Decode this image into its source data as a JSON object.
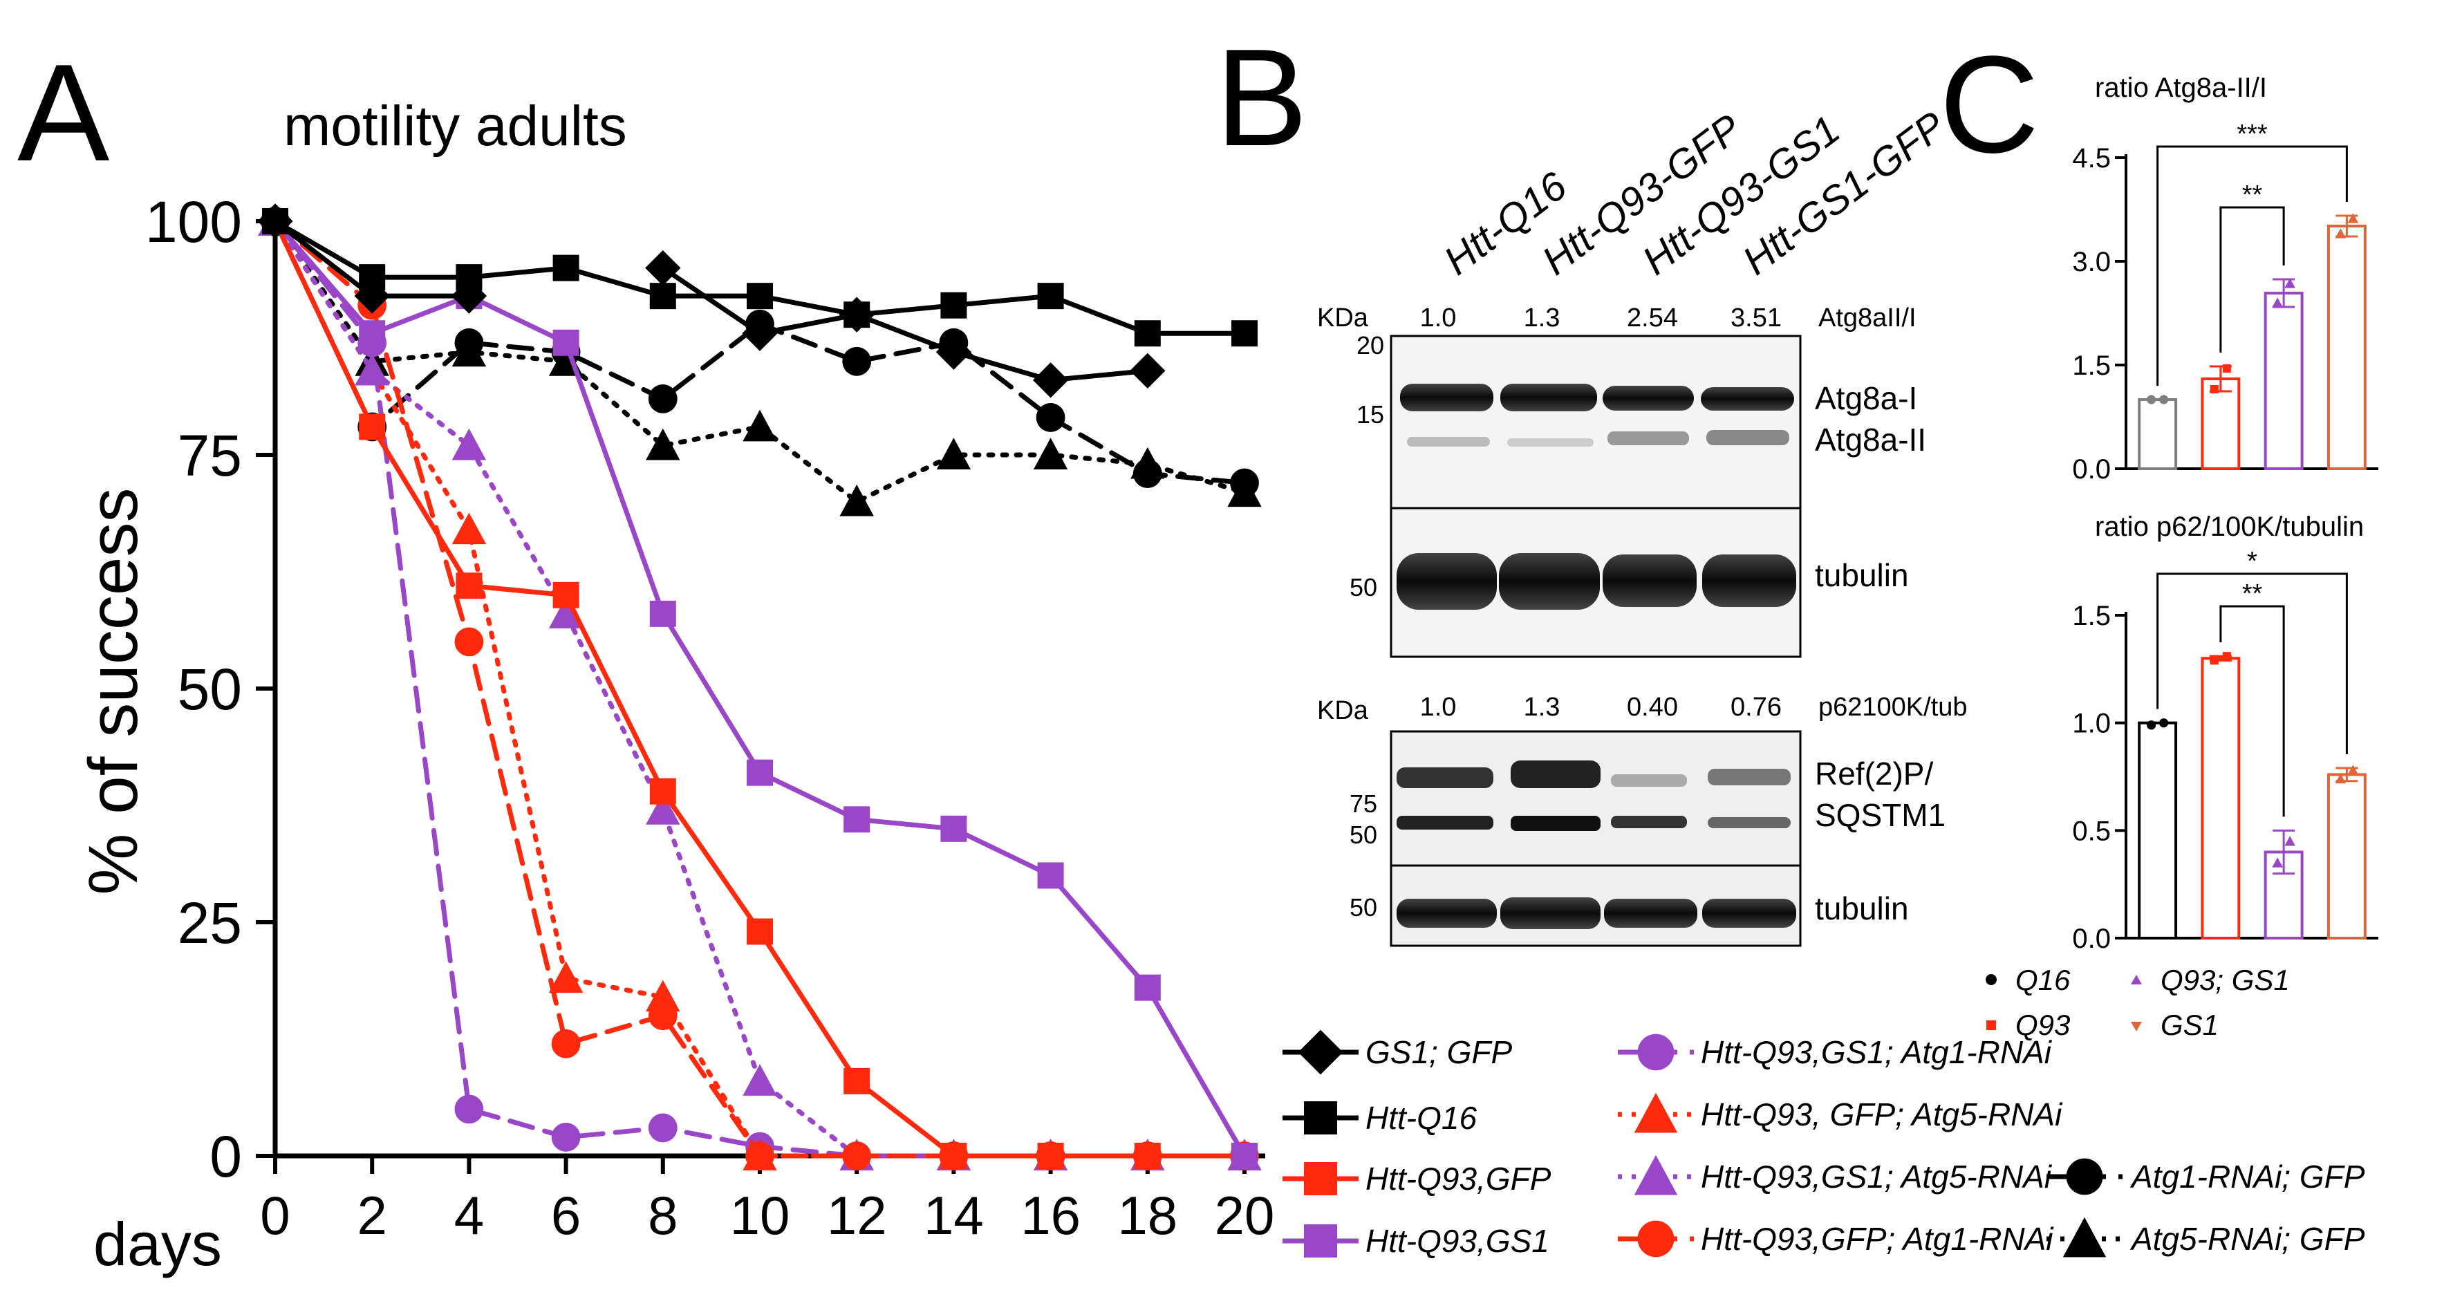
{
  "panels": {
    "a": {
      "letter": "A",
      "title": "motility adults"
    },
    "b": {
      "letter": "B"
    },
    "c": {
      "letter": "C"
    }
  },
  "colors": {
    "black": "#000000",
    "red": "#ff2a0d",
    "purple": "#9a46c8",
    "orange": "#e0663a",
    "gray": "#808080"
  },
  "chart_data": [
    {
      "type": "line",
      "panel": "A",
      "title": "motility adults",
      "xlabel": "days",
      "ylabel": "% of success",
      "x": [
        0,
        2,
        4,
        6,
        8,
        10,
        12,
        14,
        16,
        18,
        20
      ],
      "xticks": [
        "0",
        "2",
        "4",
        "6",
        "8",
        "10",
        "12",
        "14",
        "16",
        "18",
        "20"
      ],
      "yticks": [
        "0",
        "25",
        "50",
        "75",
        "100"
      ],
      "xlim": [
        0,
        20
      ],
      "ylim": [
        0,
        100
      ],
      "series": [
        {
          "name": "GS1; GFP",
          "color": "#000000",
          "marker": "diamond",
          "dash": "solid",
          "values": [
            100,
            92,
            92,
            null,
            95,
            88,
            90,
            86,
            83,
            84,
            null
          ]
        },
        {
          "name": "Htt-Q16",
          "color": "#000000",
          "marker": "square",
          "dash": "solid",
          "values": [
            100,
            94,
            94,
            95,
            92,
            92,
            90,
            91,
            92,
            88,
            88
          ]
        },
        {
          "name": "Htt-Q93,GFP",
          "color": "#ff2a0d",
          "marker": "square",
          "dash": "solid",
          "values": [
            100,
            78,
            61,
            60,
            39,
            24,
            8,
            0,
            0,
            0,
            0
          ]
        },
        {
          "name": "Htt-Q93,GS1",
          "color": "#9a46c8",
          "marker": "square",
          "dash": "solid",
          "values": [
            100,
            88,
            92,
            87,
            58,
            41,
            36,
            35,
            30,
            18,
            0
          ]
        },
        {
          "name": "Htt-Q93,GS1; Atg1-RNAi",
          "color": "#9a46c8",
          "marker": "circle",
          "dash": "dashed",
          "values": [
            100,
            87,
            5,
            2,
            3,
            1,
            0,
            0,
            0,
            0,
            0
          ]
        },
        {
          "name": "Htt-Q93, GFP; Atg5-RNAi",
          "color": "#ff2a0d",
          "marker": "triangle",
          "dash": "dotted",
          "values": [
            100,
            84,
            67,
            19,
            17,
            0,
            0,
            0,
            0,
            0,
            0
          ]
        },
        {
          "name": "Htt-Q93,GS1; Atg5-RNAi",
          "color": "#9a46c8",
          "marker": "triangle",
          "dash": "dotted",
          "values": [
            100,
            84,
            76,
            58,
            37,
            8,
            0,
            0,
            0,
            0,
            0
          ]
        },
        {
          "name": "Htt-Q93,GFP; Atg1-RNAi",
          "color": "#ff2a0d",
          "marker": "circle",
          "dash": "dashed",
          "values": [
            100,
            91,
            55,
            12,
            15,
            0,
            0,
            0,
            0,
            0,
            0
          ]
        },
        {
          "name": "Atg1-RNAi; GFP",
          "color": "#000000",
          "marker": "circle",
          "dash": "dashed",
          "values": [
            100,
            78,
            87,
            86,
            81,
            89,
            85,
            87,
            79,
            73,
            72
          ]
        },
        {
          "name": "Atg5-RNAi; GFP",
          "color": "#000000",
          "marker": "triangle",
          "dash": "dotted",
          "values": [
            100,
            85,
            86,
            85,
            76,
            78,
            70,
            75,
            75,
            74,
            71
          ]
        }
      ]
    },
    {
      "type": "bar",
      "panel": "C-top",
      "title": "ratio Atg8a-II/I",
      "categories": [
        "Q16",
        "Q93",
        "Q93; GS1",
        "GS1"
      ],
      "values": [
        1.0,
        1.3,
        2.54,
        3.51
      ],
      "errors": [
        0.0,
        0.18,
        0.2,
        0.15
      ],
      "points": [
        [
          1.0,
          1.0
        ],
        [
          1.15,
          1.45
        ],
        [
          2.4,
          2.68
        ],
        [
          3.4,
          3.62
        ]
      ],
      "colors": [
        "#808080",
        "#ff2a0d",
        "#9a46c8",
        "#e0663a"
      ],
      "ylim": [
        0,
        4.5
      ],
      "yticks": [
        "0.0",
        "1.5",
        "3.0",
        "4.5"
      ],
      "significance": [
        {
          "from": 1,
          "to": 2,
          "label": "**"
        },
        {
          "from": 0,
          "to": 3,
          "label": "***"
        }
      ]
    },
    {
      "type": "bar",
      "panel": "C-bottom",
      "title": "ratio p62/100K/tubulin",
      "categories": [
        "Q16",
        "Q93",
        "Q93; GS1",
        "GS1"
      ],
      "values": [
        1.0,
        1.3,
        0.4,
        0.76
      ],
      "errors": [
        0.0,
        0.01,
        0.1,
        0.03
      ],
      "points": [
        [
          0.99,
          1.0
        ],
        [
          1.29,
          1.31
        ],
        [
          0.35,
          0.45
        ],
        [
          0.74,
          0.78
        ]
      ],
      "colors": [
        "#000000",
        "#ff2a0d",
        "#9a46c8",
        "#e0663a"
      ],
      "ylim": [
        0,
        1.5
      ],
      "yticks": [
        "0.0",
        "0.5",
        "1.0",
        "1.5"
      ],
      "significance": [
        {
          "from": 1,
          "to": 2,
          "label": "**"
        },
        {
          "from": 0,
          "to": 3,
          "label": "*"
        }
      ]
    }
  ],
  "blot": {
    "lanes": [
      "Htt-Q16",
      "Htt-Q93-GFP",
      "Htt-Q93-GS1",
      "Htt-GS1-GFP"
    ],
    "kda_label": "KDa",
    "top": {
      "ratio_label": "Atg8aII/I",
      "ratios": [
        "1.0",
        "1.3",
        "2.54",
        "3.51"
      ],
      "markers": [
        "20",
        "15",
        "50"
      ],
      "bands": [
        "Atg8a-I",
        "Atg8a-II",
        "tubulin"
      ]
    },
    "bottom": {
      "ratio_label": "p62100K/tub",
      "ratios": [
        "1.0",
        "1.3",
        "0.40",
        "0.76"
      ],
      "markers": [
        "75",
        "50",
        "50"
      ],
      "band1": "Ref(2)P/",
      "band2": "SQSTM1",
      "band3": "tubulin"
    }
  },
  "legend_c": [
    "Q16",
    "Q93",
    "Q93; GS1",
    "GS1"
  ]
}
